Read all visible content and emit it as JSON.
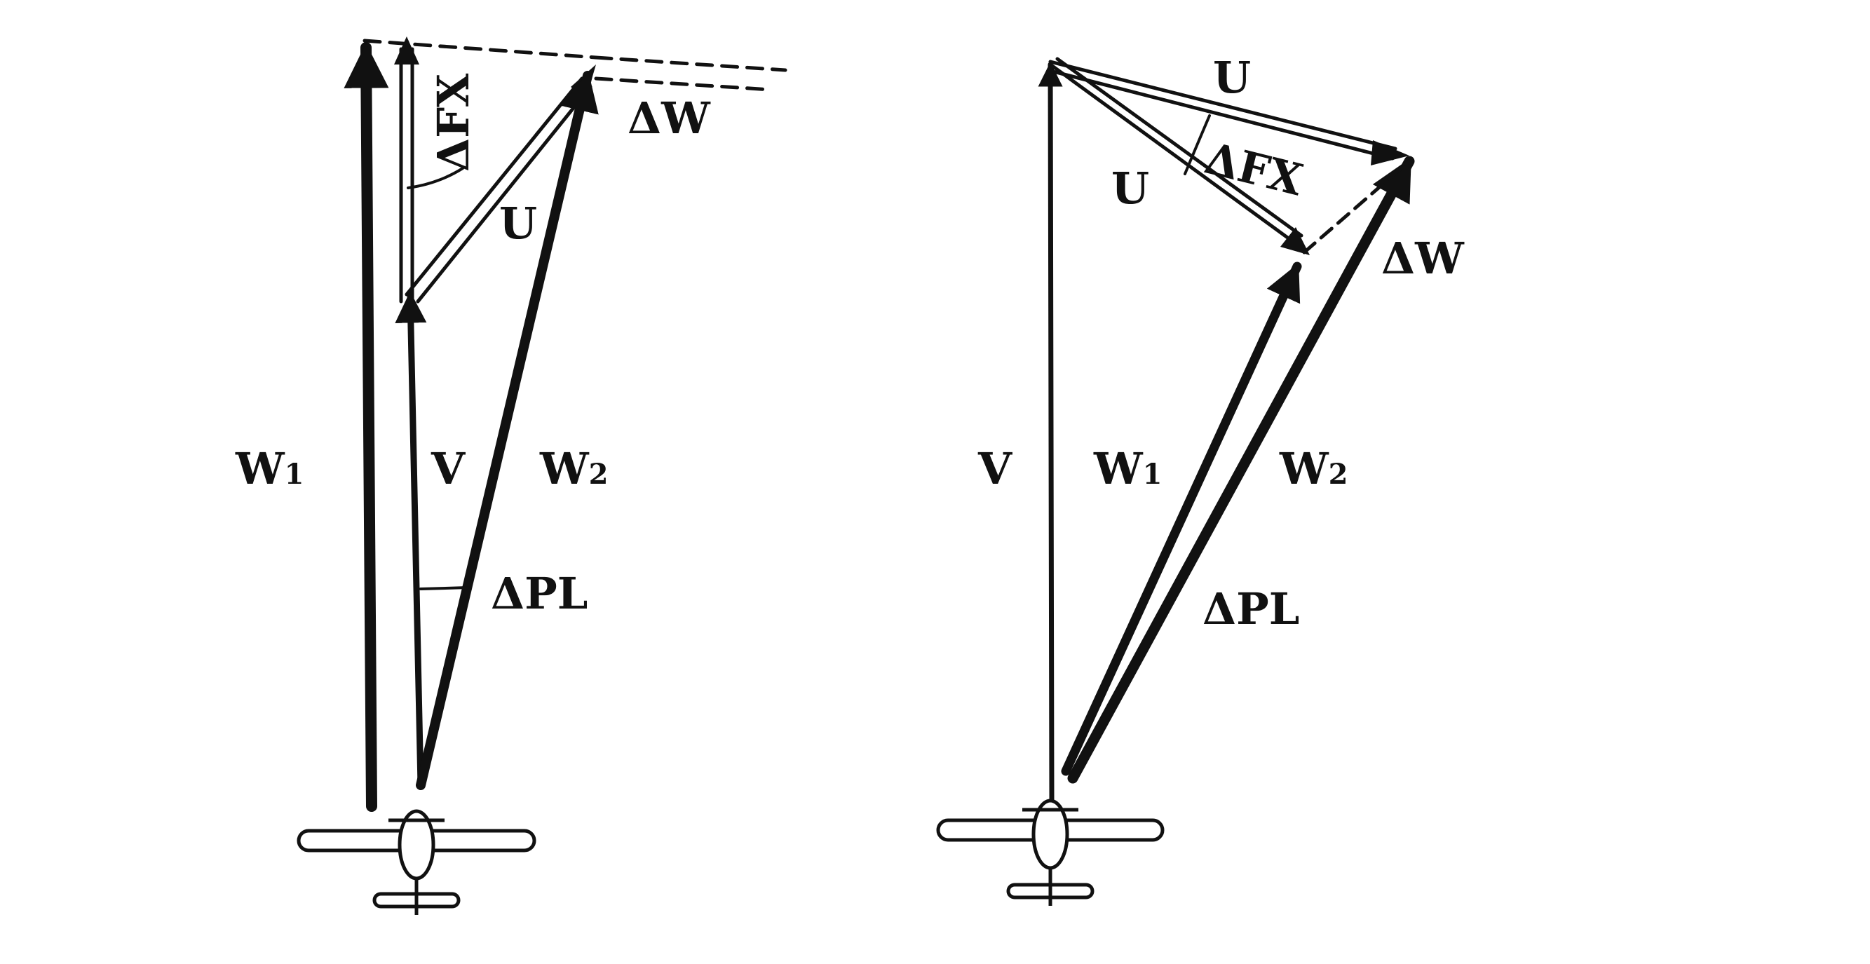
{
  "left_diagram": {
    "labels": {
      "w1": "W",
      "w1_sub": "1",
      "v": "V",
      "w2": "W",
      "w2_sub": "2",
      "dfx": "ΔFX",
      "u": "U",
      "dw": "ΔW",
      "dpl": "ΔPL"
    }
  },
  "right_diagram": {
    "labels": {
      "u_top": "U",
      "u_mid": "U",
      "dfx": "ΔFX",
      "dw": "ΔW",
      "v": "V",
      "w1": "W",
      "w1_sub": "1",
      "w2": "W",
      "w2_sub": "2",
      "dpl": "ΔPL"
    }
  },
  "colors": {
    "ink": "#111111",
    "paper": "#ffffff"
  }
}
